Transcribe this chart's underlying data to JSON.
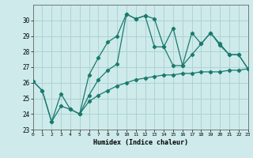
{
  "xlabel": "Humidex (Indice chaleur)",
  "background_color": "#ceeaea",
  "grid_color": "#aacfcf",
  "line_color": "#1a7a6e",
  "xlim": [
    0,
    23
  ],
  "ylim": [
    23,
    31
  ],
  "xticks": [
    0,
    1,
    2,
    3,
    4,
    5,
    6,
    7,
    8,
    9,
    10,
    11,
    12,
    13,
    14,
    15,
    16,
    17,
    18,
    19,
    20,
    21,
    22,
    23
  ],
  "yticks": [
    23,
    24,
    25,
    26,
    27,
    28,
    29,
    30
  ],
  "series1_x": [
    0,
    1,
    2,
    3,
    4,
    5,
    6,
    7,
    8,
    9,
    10,
    11,
    12,
    13,
    14,
    15,
    16,
    17,
    18,
    19,
    20,
    21,
    22,
    23
  ],
  "series1_y": [
    26.1,
    25.5,
    23.5,
    25.3,
    24.3,
    24.0,
    26.5,
    27.6,
    28.6,
    29.0,
    30.4,
    30.1,
    30.3,
    30.1,
    28.3,
    29.5,
    27.1,
    27.8,
    28.5,
    29.2,
    28.5,
    27.8,
    27.8,
    26.9
  ],
  "series2_x": [
    0,
    1,
    2,
    3,
    4,
    5,
    6,
    7,
    8,
    9,
    10,
    11,
    12,
    13,
    14,
    15,
    16,
    17,
    18,
    19,
    20,
    21,
    22,
    23
  ],
  "series2_y": [
    26.1,
    25.5,
    23.5,
    24.5,
    24.3,
    24.0,
    24.8,
    25.2,
    25.5,
    25.8,
    26.0,
    26.2,
    26.3,
    26.4,
    26.5,
    26.5,
    26.6,
    26.6,
    26.7,
    26.7,
    26.7,
    26.8,
    26.8,
    26.9
  ],
  "series3_x": [
    5,
    6,
    7,
    8,
    9,
    10,
    11,
    12,
    13,
    14,
    15,
    16,
    17,
    18,
    19,
    20,
    21,
    22,
    23
  ],
  "series3_y": [
    24.0,
    25.2,
    26.2,
    26.8,
    27.2,
    30.4,
    30.1,
    30.3,
    28.3,
    28.3,
    27.1,
    27.1,
    29.2,
    28.5,
    29.2,
    28.4,
    27.8,
    27.8,
    26.9
  ]
}
